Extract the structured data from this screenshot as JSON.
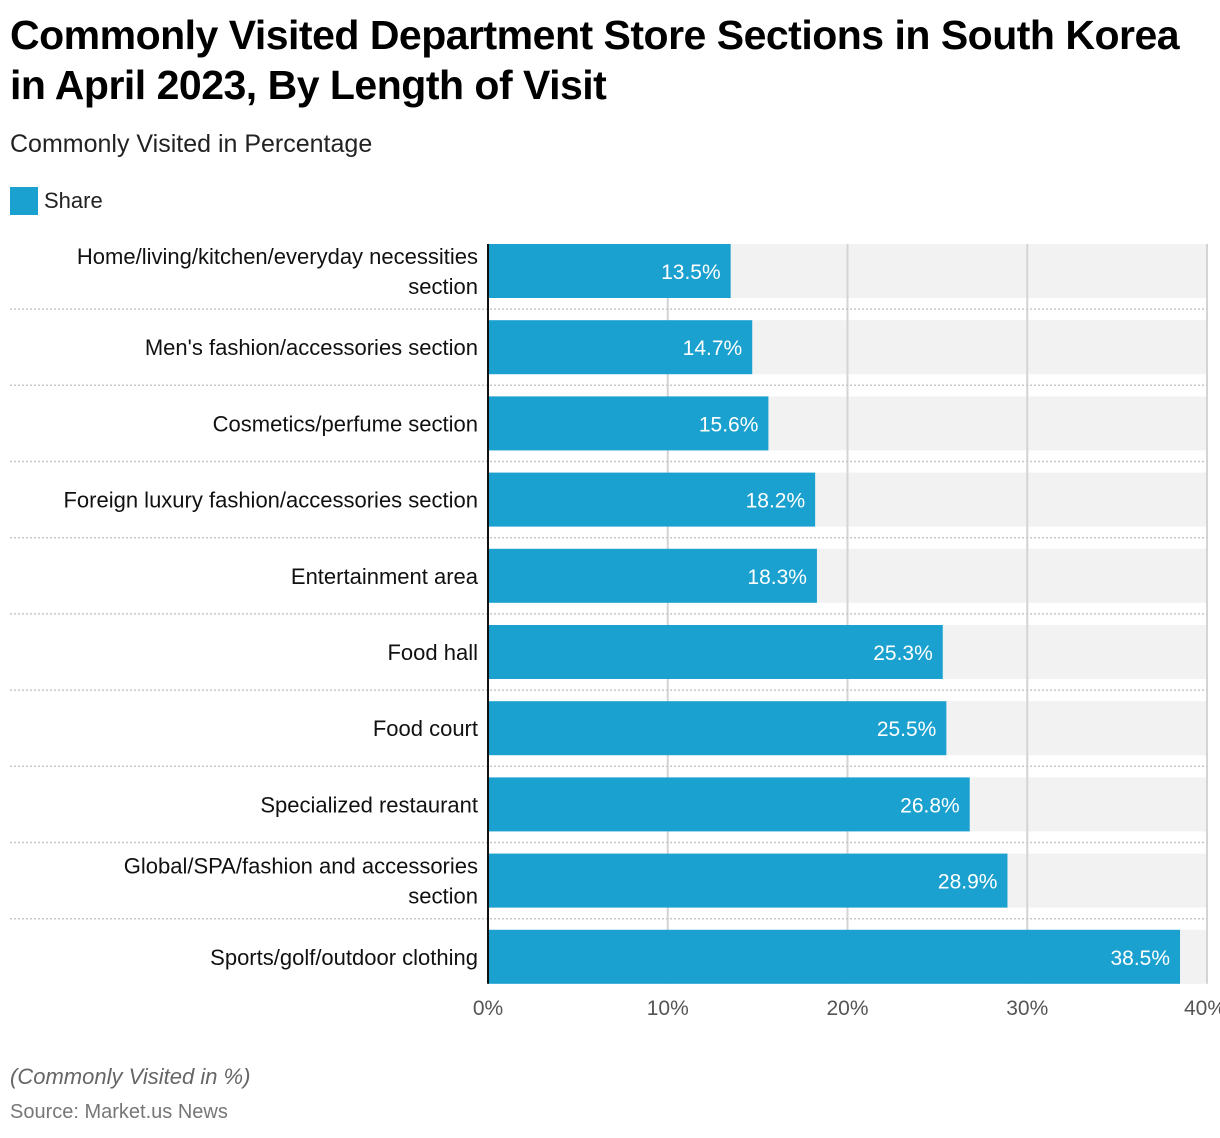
{
  "header": {
    "title": "Commonly Visited Department Store Sections in South Korea in April 2023, By Length of Visit",
    "subtitle": "Commonly Visited in Percentage"
  },
  "legend": {
    "label": "Share",
    "color": "#1ba1cf"
  },
  "footer": {
    "note": "(Commonly Visited in %)",
    "source": "Source: Market.us News"
  },
  "chart_data": {
    "type": "bar",
    "orientation": "horizontal",
    "title": "Commonly Visited Department Store Sections in South Korea in April 2023, By Length of Visit",
    "subtitle": "Commonly Visited in Percentage",
    "xlabel": "",
    "ylabel": "",
    "xlim": [
      0,
      40
    ],
    "ticks": [
      0,
      10,
      20,
      30,
      40
    ],
    "tick_labels": [
      "0%",
      "10%",
      "20%",
      "30%",
      "40%"
    ],
    "grid": true,
    "legend_position": "top-left",
    "categories": [
      [
        "Home/living/kitchen/everyday necessities",
        "section"
      ],
      [
        "Men's fashion/accessories section"
      ],
      [
        "Cosmetics/perfume section"
      ],
      [
        "Foreign luxury fashion/accessories section"
      ],
      [
        "Entertainment area"
      ],
      [
        "Food hall"
      ],
      [
        "Food court"
      ],
      [
        "Specialized restaurant"
      ],
      [
        "Global/SPA/fashion and accessories",
        "section"
      ],
      [
        "Sports/golf/outdoor clothing"
      ]
    ],
    "series": [
      {
        "name": "Share",
        "color": "#1ba1cf",
        "values": [
          13.5,
          14.7,
          15.6,
          18.2,
          18.3,
          25.3,
          25.5,
          26.8,
          28.9,
          38.5
        ],
        "labels": [
          "13.5%",
          "14.7%",
          "15.6%",
          "18.2%",
          "18.3%",
          "25.3%",
          "25.5%",
          "26.8%",
          "28.9%",
          "38.5%"
        ]
      }
    ]
  }
}
